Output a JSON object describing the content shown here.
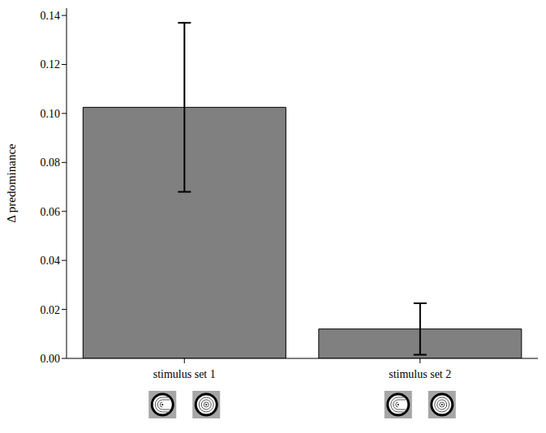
{
  "chart_data": {
    "type": "bar",
    "categories": [
      "stimulus set 1",
      "stimulus set 2"
    ],
    "values": [
      0.1025,
      0.012
    ],
    "errors": [
      0.0345,
      0.0105
    ],
    "color": "#808080",
    "ylabel": "Δ predominance",
    "ylim": [
      0,
      0.143
    ],
    "yticks": [
      {
        "value": 0,
        "label": "0.00"
      },
      {
        "value": 0.02,
        "label": "0.02"
      },
      {
        "value": 0.04,
        "label": "0.04"
      },
      {
        "value": 0.06,
        "label": "0.06"
      },
      {
        "value": 0.08,
        "label": "0.08"
      },
      {
        "value": 0.1,
        "label": "0.10"
      },
      {
        "value": 0.12,
        "label": "0.12"
      },
      {
        "value": 0.14,
        "label": "0.14"
      }
    ],
    "grid": false
  }
}
